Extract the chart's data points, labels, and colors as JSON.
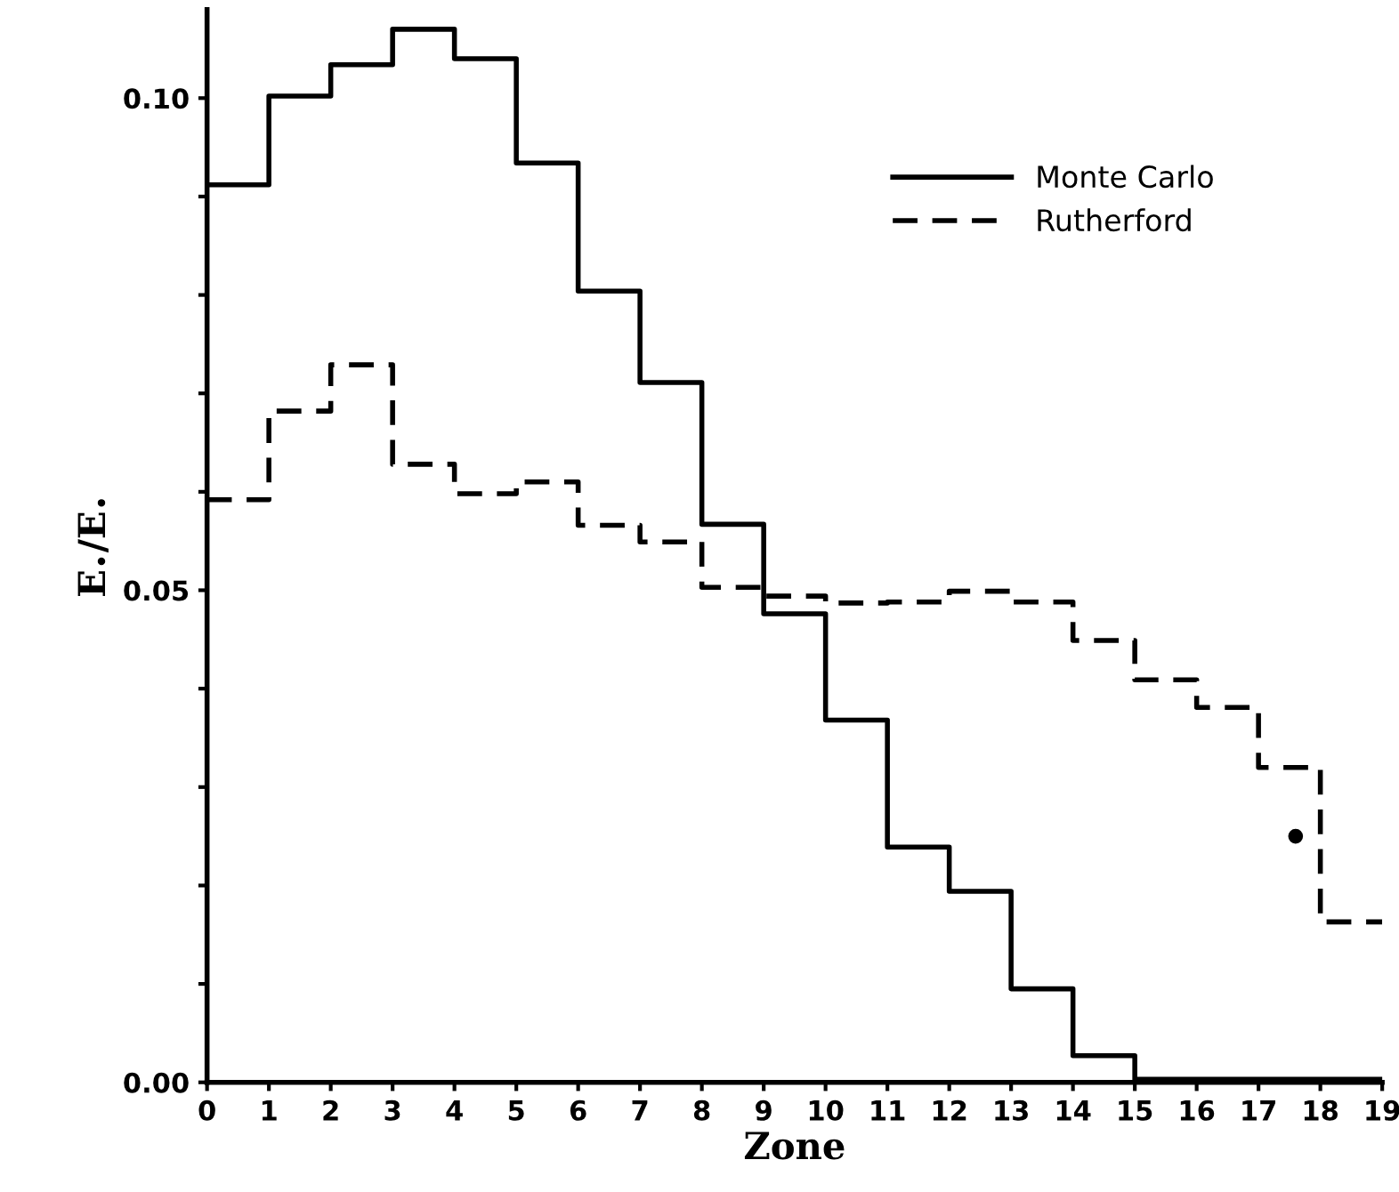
{
  "chart_data": {
    "type": "histogram",
    "xlabel": "Zone",
    "ylabel": "E$_{•}$/E$_{•}$",
    "bins": [
      0,
      1,
      2,
      3,
      4,
      5,
      6,
      7,
      8,
      9,
      10,
      11,
      12,
      13,
      14,
      15,
      16,
      17,
      18,
      19
    ],
    "series": [
      {
        "name": "Monte Carlo",
        "color": "#000000",
        "line_style": "solid",
        "values": [
          0.0912,
          0.1002,
          0.1034,
          0.107,
          0.104,
          0.0934,
          0.0804,
          0.0711,
          0.0567,
          0.0476,
          0.0368,
          0.0239,
          0.0194,
          0.0095,
          0.0027,
          0.0003,
          0.0003,
          0.0003,
          0.0003
        ]
      },
      {
        "name": "Rutherford",
        "color": "#000000",
        "line_style": "dashed",
        "values": [
          0.0592,
          0.0682,
          0.0729,
          0.0628,
          0.0598,
          0.061,
          0.0566,
          0.0549,
          0.0503,
          0.0494,
          0.0487,
          0.0488,
          0.0499,
          0.0488,
          0.0449,
          0.0409,
          0.0381,
          0.032,
          0.0163
        ]
      },
      {
        "type": "scatter",
        "color": "#000000",
        "marker": "circle",
        "x": [
          17.6
        ],
        "values": [
          0.025
        ]
      }
    ],
    "xlim": [
      0,
      19
    ],
    "ylim": [
      0,
      0.109
    ],
    "xticks": [
      0,
      1,
      2,
      3,
      4,
      5,
      6,
      7,
      8,
      9,
      10,
      11,
      12,
      13,
      14,
      15,
      16,
      17,
      18,
      19
    ],
    "yticks": [
      {
        "value": 0,
        "label": "0.00"
      },
      {
        "value": 0.01,
        "label": null
      },
      {
        "value": 0.02,
        "label": null
      },
      {
        "value": 0.03,
        "label": null
      },
      {
        "value": 0.04,
        "label": null
      },
      {
        "value": 0.05,
        "label": "0.05"
      },
      {
        "value": 0.06,
        "label": null
      },
      {
        "value": 0.07,
        "label": null
      },
      {
        "value": 0.08,
        "label": null
      },
      {
        "value": 0.09,
        "label": null
      },
      {
        "value": 0.1,
        "label": "0.10"
      }
    ],
    "grid": false,
    "legend": "top right"
  }
}
